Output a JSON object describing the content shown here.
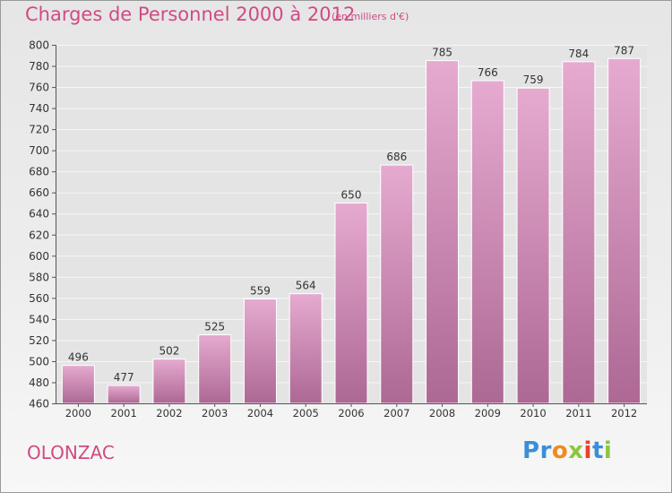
{
  "title": "Charges de Personnel 2000 à 2012",
  "subtitle": "(en milliers d'€)",
  "place": "OLONZAC",
  "logo": {
    "text": "Proxiti",
    "letters": [
      "P",
      "r",
      "o",
      "x",
      "i",
      "t",
      "i"
    ],
    "colors": [
      "#3b8fd8",
      "#3b8fd8",
      "#f18a1c",
      "#8cc63f",
      "#e8412c",
      "#3b8fd8",
      "#8cc63f"
    ]
  },
  "colors": {
    "bar": "#d98ab5",
    "bar_light": "#e5a9cc",
    "bar_dark": "#b26a96",
    "text": "#d04a84"
  },
  "chart_data": {
    "type": "bar",
    "title": "Charges de Personnel 2000 à 2012",
    "ylabel": "(en milliers d'€)",
    "xlabel": "",
    "categories": [
      "2000",
      "2001",
      "2002",
      "2003",
      "2004",
      "2005",
      "2006",
      "2007",
      "2008",
      "2009",
      "2010",
      "2011",
      "2012"
    ],
    "values": [
      496,
      477,
      502,
      525,
      559,
      564,
      650,
      686,
      785,
      766,
      759,
      784,
      787
    ],
    "ylim": [
      460,
      800
    ],
    "yticks": [
      460,
      480,
      500,
      520,
      540,
      560,
      580,
      600,
      620,
      640,
      660,
      680,
      700,
      720,
      740,
      760,
      780,
      800
    ],
    "grid": true
  }
}
